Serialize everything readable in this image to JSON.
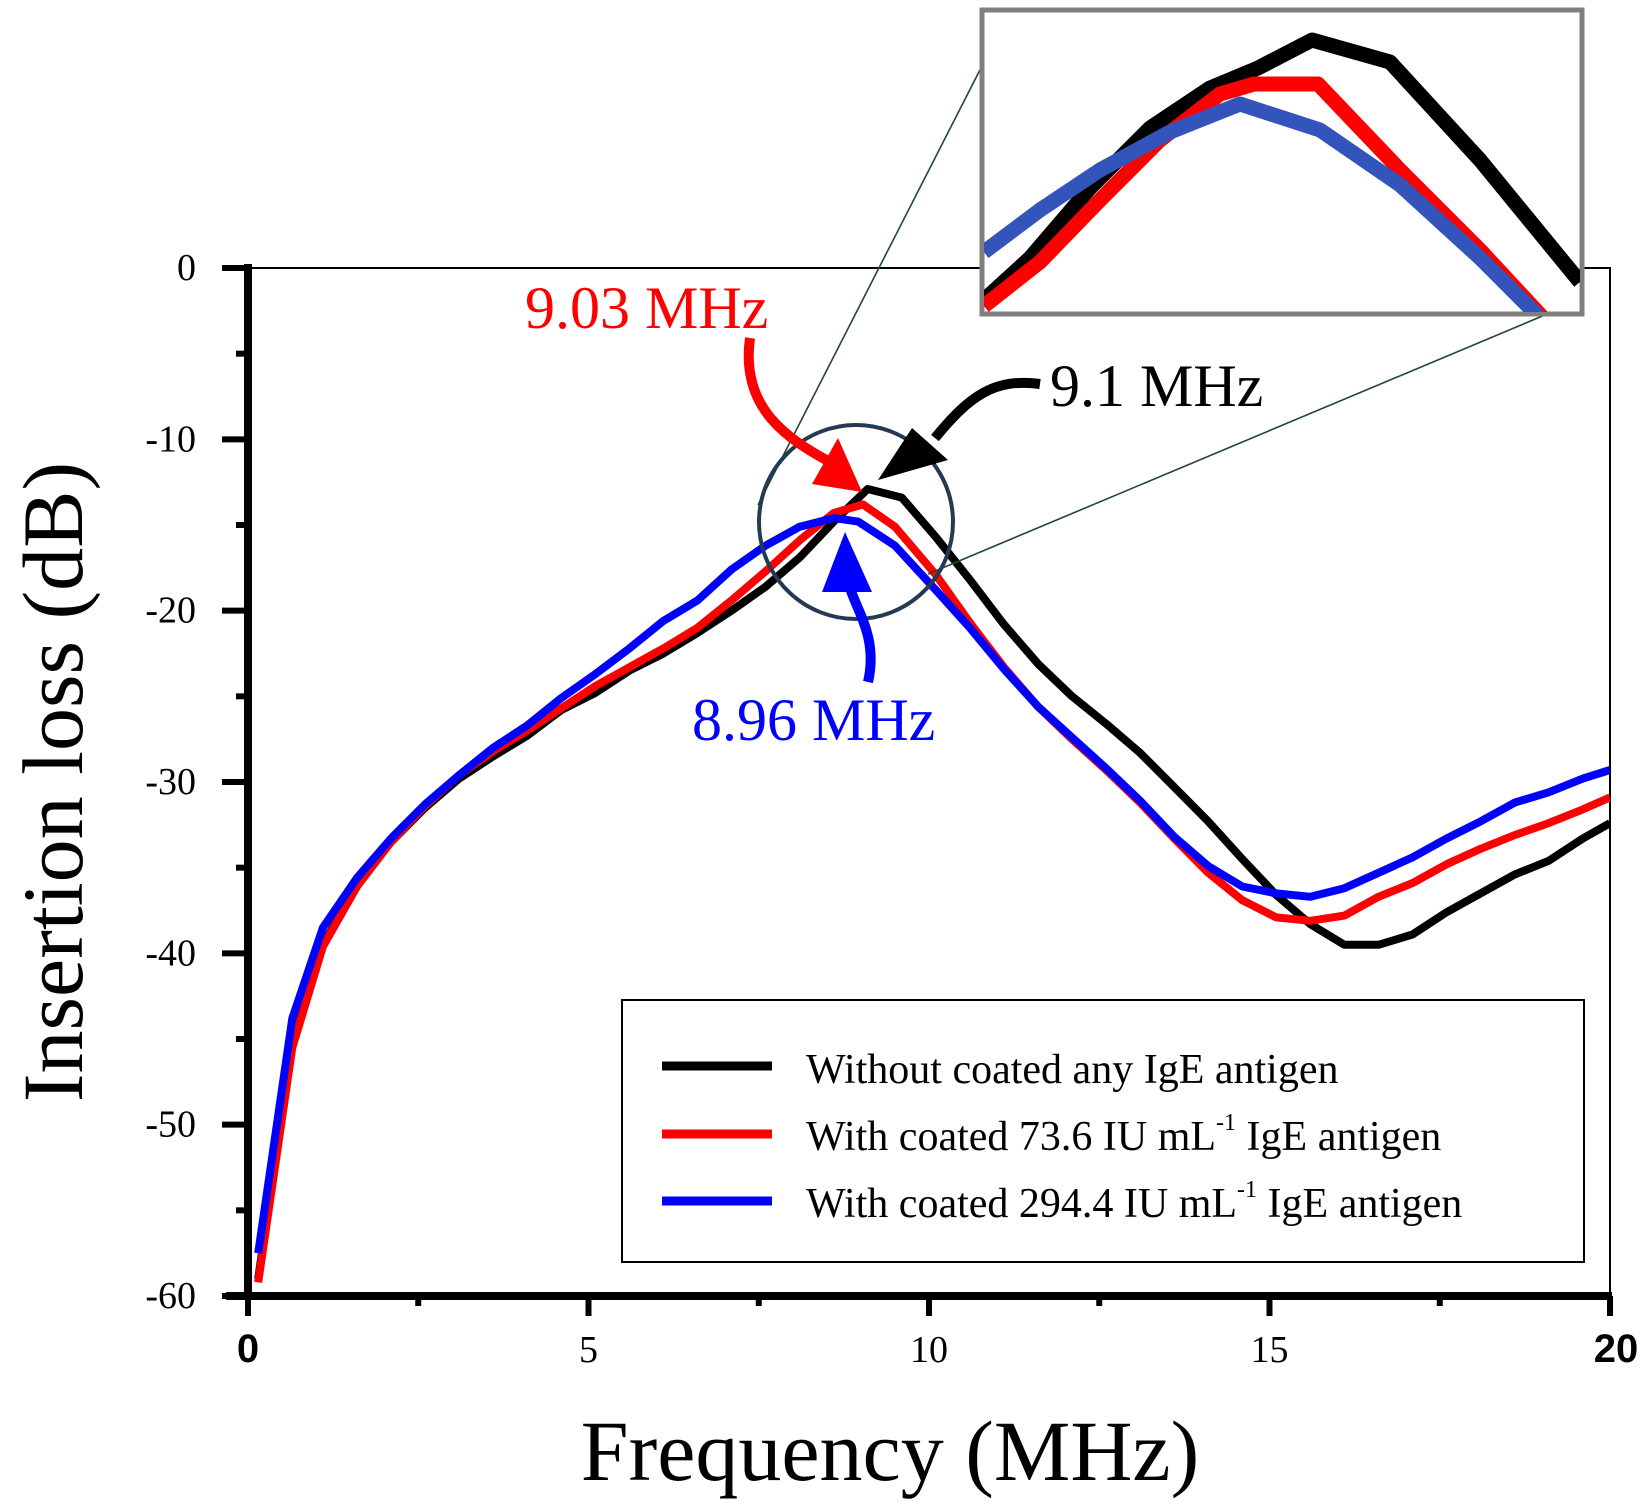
{
  "chart_data": {
    "type": "line",
    "title": "",
    "xlabel": "Frequency (MHz)",
    "ylabel": "Insertion loss (dB)",
    "xlim": [
      0,
      20
    ],
    "ylim": [
      -60,
      0
    ],
    "x_ticks": [
      0,
      5,
      10,
      15,
      20
    ],
    "x_tick_labels": [
      "0",
      "5",
      "10",
      "15",
      "20"
    ],
    "y_ticks": [
      0,
      -10,
      -20,
      -30,
      -40,
      -50,
      -60
    ],
    "y_tick_labels": [
      "0",
      "-10",
      "-20",
      "-30",
      "-40",
      "-50",
      "-60"
    ],
    "grid": false,
    "legend_position": "bottom-right",
    "series": [
      {
        "name": "Without coated any IgE antigen",
        "color": "#000000",
        "x": [
          0.15,
          0.65,
          1.1,
          1.6,
          2.1,
          2.6,
          3.1,
          3.6,
          4.1,
          4.6,
          5.1,
          5.6,
          6.1,
          6.6,
          7.1,
          7.6,
          8.1,
          8.6,
          9.1,
          9.6,
          10.1,
          10.6,
          11.1,
          11.6,
          12.1,
          12.6,
          13.1,
          13.6,
          14.1,
          14.6,
          15.1,
          15.6,
          16.1,
          16.6,
          17.1,
          17.6,
          18.1,
          18.6,
          19.1,
          19.6,
          20.0
        ],
        "y": [
          -59,
          -45,
          -39.5,
          -36,
          -33.5,
          -31.5,
          -29.8,
          -28.5,
          -27.3,
          -25.8,
          -24.8,
          -23.5,
          -22.5,
          -21.3,
          -20,
          -18.6,
          -16.9,
          -14.8,
          -12.9,
          -13.4,
          -15.7,
          -18.2,
          -20.8,
          -23.1,
          -25,
          -26.6,
          -28.3,
          -30.3,
          -32.3,
          -34.5,
          -36.6,
          -38.3,
          -39.5,
          -39.5,
          -38.9,
          -37.6,
          -36.5,
          -35.4,
          -34.6,
          -33.3,
          -32.4
        ]
      },
      {
        "name": "With coated 73.6 IU mL-1 IgE antigen",
        "legend_main": "With coated 73.6 IU mL",
        "legend_sup": "-1",
        "legend_tail": " IgE antigen",
        "color": "#ff0000",
        "x": [
          0.15,
          0.65,
          1.1,
          1.6,
          2.1,
          2.6,
          3.1,
          3.6,
          4.1,
          4.6,
          5.1,
          5.6,
          6.1,
          6.6,
          7.1,
          7.6,
          8.1,
          8.6,
          9.03,
          9.5,
          10.1,
          10.6,
          11.1,
          11.6,
          12.1,
          12.6,
          13.1,
          13.6,
          14.1,
          14.6,
          15.1,
          15.6,
          16.1,
          16.6,
          17.1,
          17.6,
          18.1,
          18.6,
          19.1,
          19.6,
          20.0
        ],
        "y": [
          -59.2,
          -45.5,
          -39.6,
          -36.1,
          -33.5,
          -31.4,
          -29.6,
          -28.2,
          -27,
          -25.7,
          -24.4,
          -23.3,
          -22.2,
          -21,
          -19.4,
          -17.7,
          -15.9,
          -14.3,
          -13.8,
          -15.1,
          -17.9,
          -20.7,
          -23.3,
          -25.6,
          -27.5,
          -29.3,
          -31.2,
          -33.3,
          -35.3,
          -36.9,
          -37.9,
          -38.1,
          -37.8,
          -36.7,
          -35.9,
          -34.8,
          -33.9,
          -33.1,
          -32.4,
          -31.6,
          -30.9
        ]
      },
      {
        "name": "With coated 294.4 IU mL-1 IgE antigen",
        "legend_main": "With coated 294.4 IU mL",
        "legend_sup": "-1",
        "legend_tail": " IgE antigen",
        "color": "#0000ff",
        "x": [
          0.15,
          0.65,
          1.1,
          1.6,
          2.1,
          2.6,
          3.1,
          3.6,
          4.1,
          4.6,
          5.1,
          5.6,
          6.1,
          6.6,
          7.1,
          7.6,
          8.1,
          8.6,
          8.96,
          9.5,
          10.1,
          10.6,
          11.1,
          11.6,
          12.1,
          12.6,
          13.1,
          13.6,
          14.1,
          14.6,
          15.1,
          15.6,
          16.1,
          16.6,
          17.1,
          17.6,
          18.1,
          18.6,
          19.1,
          19.6,
          20.0
        ],
        "y": [
          -57.5,
          -43.8,
          -38.5,
          -35.6,
          -33.3,
          -31.3,
          -29.6,
          -28,
          -26.7,
          -25.1,
          -23.7,
          -22.2,
          -20.6,
          -19.4,
          -17.6,
          -16.2,
          -15.1,
          -14.6,
          -14.8,
          -16.2,
          -18.8,
          -21,
          -23.4,
          -25.6,
          -27.4,
          -29.2,
          -31.1,
          -33.2,
          -34.9,
          -36.1,
          -36.5,
          -36.7,
          -36.2,
          -35.3,
          -34.4,
          -33.3,
          -32.3,
          -31.2,
          -30.6,
          -29.8,
          -29.3
        ]
      }
    ],
    "annotations": [
      {
        "text": "9.03 MHz",
        "color": "#ff0000",
        "x": 9.03
      },
      {
        "text": "9.1 MHz",
        "color": "#000000",
        "x": 9.1
      },
      {
        "text": "8.96 MHz",
        "color": "#0000ff",
        "x": 8.96
      }
    ]
  }
}
